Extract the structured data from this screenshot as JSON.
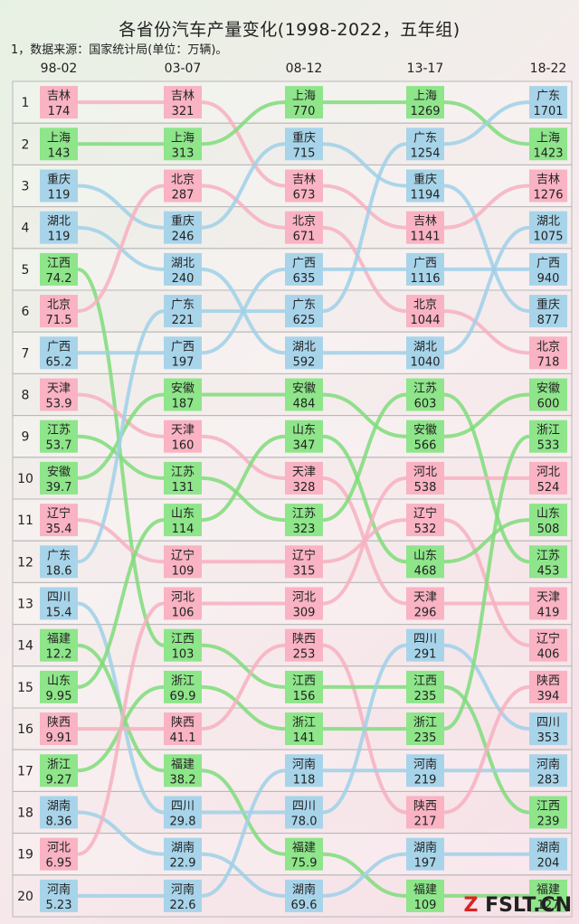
{
  "header": {
    "title": "各省份汽车产量变化(1998-2022，五年组)",
    "source": "1，数据来源：国家统计局(单位：万辆)。"
  },
  "colors": {
    "green": "#8ee58a",
    "pink": "#f9b3c3",
    "blue": "#a8d4ea",
    "line_green": "#7fdc7a",
    "line_pink": "#f7b0c0",
    "line_blue": "#9fd0e8"
  },
  "watermark": "FSLT.CN",
  "chart_data": {
    "type": "bump",
    "periods": [
      "98-02",
      "03-07",
      "08-12",
      "13-17",
      "18-22"
    ],
    "ranks": [
      1,
      2,
      3,
      4,
      5,
      6,
      7,
      8,
      9,
      10,
      11,
      12,
      13,
      14,
      15,
      16,
      17,
      18,
      19,
      20
    ],
    "columns": [
      [
        [
          "吉林",
          "174",
          "pink"
        ],
        [
          "上海",
          "143",
          "green"
        ],
        [
          "重庆",
          "119",
          "blue"
        ],
        [
          "湖北",
          "119",
          "blue"
        ],
        [
          "江西",
          "74.2",
          "green"
        ],
        [
          "北京",
          "71.5",
          "pink"
        ],
        [
          "广西",
          "65.2",
          "blue"
        ],
        [
          "天津",
          "53.9",
          "pink"
        ],
        [
          "江苏",
          "53.7",
          "green"
        ],
        [
          "安徽",
          "39.7",
          "green"
        ],
        [
          "辽宁",
          "35.4",
          "pink"
        ],
        [
          "广东",
          "18.6",
          "blue"
        ],
        [
          "四川",
          "15.4",
          "blue"
        ],
        [
          "福建",
          "12.2",
          "green"
        ],
        [
          "山东",
          "9.95",
          "green"
        ],
        [
          "陕西",
          "9.91",
          "pink"
        ],
        [
          "浙江",
          "9.27",
          "green"
        ],
        [
          "湖南",
          "8.36",
          "blue"
        ],
        [
          "河北",
          "6.95",
          "pink"
        ],
        [
          "河南",
          "5.23",
          "blue"
        ]
      ],
      [
        [
          "吉林",
          "321",
          "pink"
        ],
        [
          "上海",
          "313",
          "green"
        ],
        [
          "北京",
          "287",
          "pink"
        ],
        [
          "重庆",
          "246",
          "blue"
        ],
        [
          "湖北",
          "240",
          "blue"
        ],
        [
          "广东",
          "221",
          "blue"
        ],
        [
          "广西",
          "197",
          "blue"
        ],
        [
          "安徽",
          "187",
          "green"
        ],
        [
          "天津",
          "160",
          "pink"
        ],
        [
          "江苏",
          "131",
          "green"
        ],
        [
          "山东",
          "114",
          "green"
        ],
        [
          "辽宁",
          "109",
          "pink"
        ],
        [
          "河北",
          "106",
          "pink"
        ],
        [
          "江西",
          "103",
          "green"
        ],
        [
          "浙江",
          "69.9",
          "green"
        ],
        [
          "陕西",
          "41.1",
          "pink"
        ],
        [
          "福建",
          "38.2",
          "green"
        ],
        [
          "四川",
          "29.8",
          "blue"
        ],
        [
          "湖南",
          "22.9",
          "blue"
        ],
        [
          "河南",
          "22.6",
          "blue"
        ]
      ],
      [
        [
          "上海",
          "770",
          "green"
        ],
        [
          "重庆",
          "715",
          "blue"
        ],
        [
          "吉林",
          "673",
          "pink"
        ],
        [
          "北京",
          "671",
          "pink"
        ],
        [
          "广西",
          "635",
          "blue"
        ],
        [
          "广东",
          "625",
          "blue"
        ],
        [
          "湖北",
          "592",
          "blue"
        ],
        [
          "安徽",
          "484",
          "green"
        ],
        [
          "山东",
          "347",
          "green"
        ],
        [
          "天津",
          "328",
          "pink"
        ],
        [
          "江苏",
          "323",
          "green"
        ],
        [
          "辽宁",
          "315",
          "pink"
        ],
        [
          "河北",
          "309",
          "pink"
        ],
        [
          "陕西",
          "253",
          "pink"
        ],
        [
          "江西",
          "156",
          "green"
        ],
        [
          "浙江",
          "141",
          "green"
        ],
        [
          "河南",
          "118",
          "blue"
        ],
        [
          "四川",
          "78.0",
          "blue"
        ],
        [
          "福建",
          "75.9",
          "green"
        ],
        [
          "湖南",
          "69.6",
          "blue"
        ]
      ],
      [
        [
          "上海",
          "1269",
          "green"
        ],
        [
          "广东",
          "1254",
          "blue"
        ],
        [
          "重庆",
          "1194",
          "blue"
        ],
        [
          "吉林",
          "1141",
          "pink"
        ],
        [
          "广西",
          "1116",
          "blue"
        ],
        [
          "北京",
          "1044",
          "pink"
        ],
        [
          "湖北",
          "1040",
          "blue"
        ],
        [
          "江苏",
          "603",
          "green"
        ],
        [
          "安徽",
          "566",
          "green"
        ],
        [
          "河北",
          "538",
          "pink"
        ],
        [
          "辽宁",
          "532",
          "pink"
        ],
        [
          "山东",
          "468",
          "green"
        ],
        [
          "天津",
          "296",
          "pink"
        ],
        [
          "四川",
          "291",
          "blue"
        ],
        [
          "江西",
          "235",
          "green"
        ],
        [
          "浙江",
          "235",
          "green"
        ],
        [
          "河南",
          "219",
          "blue"
        ],
        [
          "陕西",
          "217",
          "pink"
        ],
        [
          "湖南",
          "197",
          "blue"
        ],
        [
          "福建",
          "109",
          "green"
        ]
      ],
      [
        [
          "广东",
          "1701",
          "blue"
        ],
        [
          "上海",
          "1423",
          "green"
        ],
        [
          "吉林",
          "1276",
          "pink"
        ],
        [
          "湖北",
          "1075",
          "blue"
        ],
        [
          "广西",
          "940",
          "blue"
        ],
        [
          "重庆",
          "877",
          "blue"
        ],
        [
          "北京",
          "718",
          "pink"
        ],
        [
          "安徽",
          "600",
          "green"
        ],
        [
          "浙江",
          "533",
          "green"
        ],
        [
          "河北",
          "524",
          "pink"
        ],
        [
          "山东",
          "508",
          "green"
        ],
        [
          "江苏",
          "453",
          "green"
        ],
        [
          "天津",
          "419",
          "pink"
        ],
        [
          "辽宁",
          "406",
          "pink"
        ],
        [
          "陕西",
          "394",
          "pink"
        ],
        [
          "四川",
          "353",
          "blue"
        ],
        [
          "河南",
          "283",
          "blue"
        ],
        [
          "江西",
          "239",
          "green"
        ],
        [
          "湖南",
          "204",
          "blue"
        ],
        [
          "福建",
          "127",
          "green"
        ]
      ]
    ]
  }
}
